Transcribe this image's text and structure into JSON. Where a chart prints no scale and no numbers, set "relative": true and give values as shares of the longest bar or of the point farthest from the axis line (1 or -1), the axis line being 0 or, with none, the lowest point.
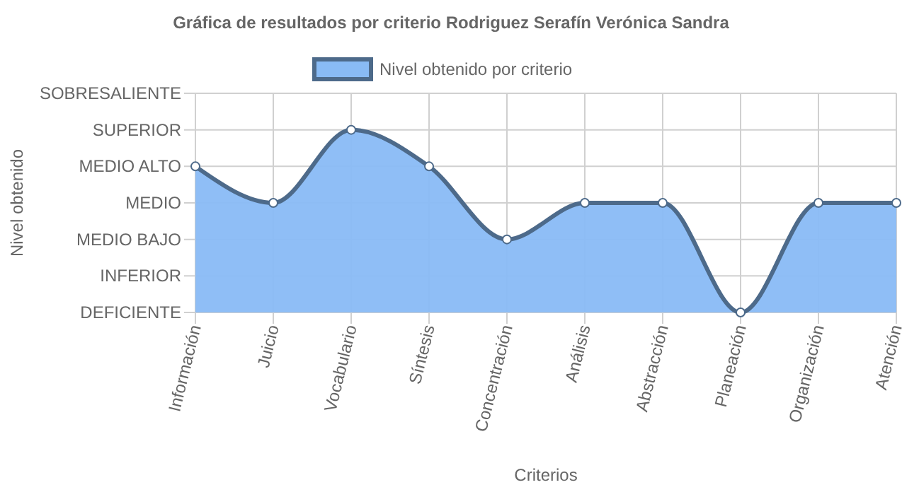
{
  "chart_data": {
    "type": "area",
    "title": "Gráfica de resultados por criterio Rodriguez Serafín Verónica Sandra",
    "xlabel": "Criterios",
    "categories": [
      "Información",
      "Juicio",
      "Vocabulario",
      "Síntesis",
      "Concentración",
      "Análisis",
      "Abstracción",
      "Planeación",
      "Organización",
      "Atención"
    ],
    "series": [
      {
        "name": "Nivel obtenido por criterio",
        "color": "#89bbf5",
        "values": [
          0.8,
          0.6,
          1,
          0.8,
          0.4,
          0.6,
          0.6,
          0,
          0.6,
          0.6
        ]
      }
    ],
    "relative": true,
    "annotations": [
      "Nivel obtenido",
      "DEFICIENTE",
      "INFERIOR",
      "MEDIO BAJO",
      "MEDIO",
      "MEDIO ALTO",
      "SUPERIOR",
      "SOBRESALIENTE"
    ],
    "grid": true,
    "legend": "top",
    "marker": "circle",
    "line_style": "solid"
  }
}
